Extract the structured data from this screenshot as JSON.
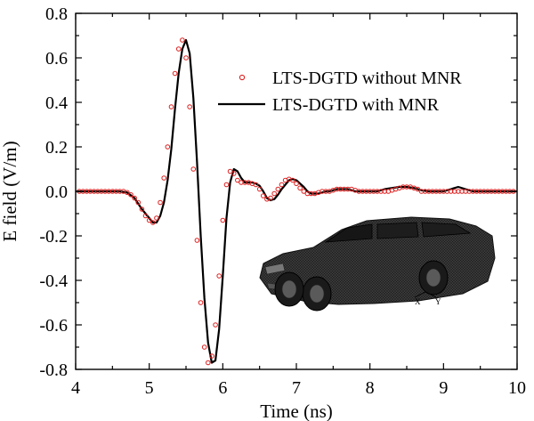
{
  "chart_data": {
    "type": "line",
    "title": "",
    "xlabel": "Time (ns)",
    "ylabel": "E field (V/m)",
    "xlim": [
      4,
      10
    ],
    "ylim": [
      -0.8,
      0.8
    ],
    "xticks": [
      4,
      5,
      6,
      7,
      8,
      9,
      10
    ],
    "yticks": [
      0.8,
      0.6,
      0.4,
      0.2,
      0.0,
      -0.2,
      -0.4,
      -0.6,
      -0.8
    ],
    "xtick_labels": [
      "4",
      "5",
      "6",
      "7",
      "8",
      "9",
      "10"
    ],
    "ytick_labels": [
      "0.8",
      "0.6",
      "0.4",
      "0.2",
      "0.0",
      "-0.2",
      "-0.4",
      "-0.6",
      "-0.8"
    ],
    "legend_position": "upper-right",
    "grid": false,
    "series": [
      {
        "name": "LTS-DGTD without MNR",
        "style": "markers",
        "color": "#e02020",
        "marker": "open-circle",
        "x": [
          4.05,
          4.1,
          4.15,
          4.2,
          4.25,
          4.3,
          4.35,
          4.4,
          4.45,
          4.5,
          4.55,
          4.6,
          4.65,
          4.7,
          4.75,
          4.8,
          4.85,
          4.9,
          4.95,
          5.0,
          5.05,
          5.1,
          5.15,
          5.2,
          5.25,
          5.3,
          5.35,
          5.4,
          5.45,
          5.5,
          5.55,
          5.6,
          5.65,
          5.7,
          5.75,
          5.8,
          5.85,
          5.9,
          5.95,
          6.0,
          6.05,
          6.1,
          6.15,
          6.2,
          6.25,
          6.3,
          6.35,
          6.4,
          6.45,
          6.5,
          6.55,
          6.6,
          6.65,
          6.7,
          6.75,
          6.8,
          6.85,
          6.9,
          6.95,
          7.0,
          7.05,
          7.1,
          7.15,
          7.2,
          7.25,
          7.3,
          7.35,
          7.4,
          7.45,
          7.5,
          7.55,
          7.6,
          7.65,
          7.7,
          7.75,
          7.8,
          7.85,
          7.9,
          7.95,
          8.0,
          8.05,
          8.1,
          8.15,
          8.2,
          8.25,
          8.3,
          8.35,
          8.4,
          8.45,
          8.5,
          8.55,
          8.6,
          8.65,
          8.7,
          8.75,
          8.8,
          8.85,
          8.9,
          8.95,
          9.0,
          9.05,
          9.1,
          9.15,
          9.2,
          9.25,
          9.3,
          9.35,
          9.4,
          9.45,
          9.5,
          9.55,
          9.6,
          9.65,
          9.7,
          9.75,
          9.8,
          9.85,
          9.9,
          9.95
        ],
        "y": [
          0.0,
          0.0,
          0.0,
          0.0,
          0.0,
          0.0,
          0.0,
          0.0,
          0.0,
          0.0,
          0.0,
          0.0,
          0.0,
          -0.005,
          -0.015,
          -0.03,
          -0.05,
          -0.08,
          -0.11,
          -0.13,
          -0.14,
          -0.12,
          -0.05,
          0.06,
          0.2,
          0.38,
          0.53,
          0.64,
          0.68,
          0.6,
          0.38,
          0.1,
          -0.22,
          -0.5,
          -0.7,
          -0.77,
          -0.74,
          -0.6,
          -0.38,
          -0.13,
          0.03,
          0.09,
          0.08,
          0.05,
          0.04,
          0.04,
          0.04,
          0.035,
          0.03,
          0.01,
          -0.02,
          -0.035,
          -0.03,
          -0.01,
          0.01,
          0.03,
          0.05,
          0.055,
          0.05,
          0.035,
          0.015,
          0.0,
          -0.01,
          -0.01,
          -0.01,
          -0.005,
          0.0,
          0.0,
          0.0,
          0.005,
          0.01,
          0.01,
          0.01,
          0.01,
          0.01,
          0.005,
          0.0,
          0.0,
          0.0,
          0.0,
          0.0,
          0.0,
          0.0,
          0.0,
          0.0,
          0.005,
          0.01,
          0.015,
          0.02,
          0.02,
          0.02,
          0.015,
          0.01,
          0.0,
          0.0,
          0.0,
          0.0,
          0.0,
          0.0,
          0.0,
          0.0,
          0.0,
          0.0,
          0.0,
          0.0,
          0.0,
          0.0,
          0.0,
          0.0,
          0.0,
          0.0,
          0.0,
          0.0,
          0.0,
          0.0,
          0.0,
          0.0,
          0.0,
          0.0
        ]
      },
      {
        "name": "LTS-DGTD with MNR",
        "style": "line",
        "color": "#000000",
        "x": [
          4.0,
          4.1,
          4.2,
          4.3,
          4.4,
          4.5,
          4.6,
          4.7,
          4.8,
          4.9,
          5.0,
          5.05,
          5.1,
          5.15,
          5.2,
          5.25,
          5.3,
          5.35,
          5.4,
          5.45,
          5.5,
          5.55,
          5.6,
          5.65,
          5.7,
          5.75,
          5.8,
          5.85,
          5.9,
          5.95,
          6.0,
          6.05,
          6.1,
          6.15,
          6.2,
          6.25,
          6.3,
          6.35,
          6.4,
          6.45,
          6.5,
          6.55,
          6.6,
          6.65,
          6.7,
          6.75,
          6.8,
          6.85,
          6.9,
          6.95,
          7.0,
          7.05,
          7.1,
          7.15,
          7.2,
          7.25,
          7.3,
          7.35,
          7.4,
          7.45,
          7.5,
          7.55,
          7.6,
          7.65,
          7.7,
          7.75,
          7.8,
          7.85,
          7.9,
          7.95,
          8.0,
          8.05,
          8.1,
          8.15,
          8.2,
          8.3,
          8.4,
          8.5,
          8.6,
          8.7,
          8.8,
          8.9,
          9.0,
          9.1,
          9.2,
          9.3,
          9.4,
          9.5,
          9.6,
          9.7,
          9.8,
          9.9,
          10.0
        ],
        "y": [
          0.0,
          0.0,
          0.0,
          0.0,
          0.0,
          0.0,
          0.0,
          -0.005,
          -0.03,
          -0.08,
          -0.12,
          -0.14,
          -0.14,
          -0.11,
          -0.05,
          0.05,
          0.19,
          0.37,
          0.53,
          0.64,
          0.68,
          0.62,
          0.42,
          0.13,
          -0.2,
          -0.48,
          -0.68,
          -0.77,
          -0.76,
          -0.62,
          -0.38,
          -0.12,
          0.04,
          0.1,
          0.09,
          0.06,
          0.04,
          0.04,
          0.04,
          0.035,
          0.025,
          0.0,
          -0.03,
          -0.04,
          -0.035,
          -0.015,
          0.01,
          0.03,
          0.05,
          0.055,
          0.05,
          0.035,
          0.02,
          0.0,
          -0.01,
          -0.01,
          -0.01,
          -0.005,
          0.0,
          0.0,
          0.005,
          0.01,
          0.01,
          0.01,
          0.01,
          0.005,
          0.0,
          0.0,
          0.0,
          0.0,
          0.0,
          0.0,
          0.0,
          0.005,
          0.01,
          0.015,
          0.02,
          0.02,
          0.015,
          0.005,
          0.0,
          0.0,
          0.0,
          0.01,
          0.02,
          0.01,
          0.0,
          0.0,
          0.0,
          0.0,
          0.0,
          0.0,
          0.0
        ]
      }
    ]
  },
  "inset": {
    "subject": "car-mesh-model",
    "axis_labels": [
      "X",
      "Y"
    ]
  }
}
